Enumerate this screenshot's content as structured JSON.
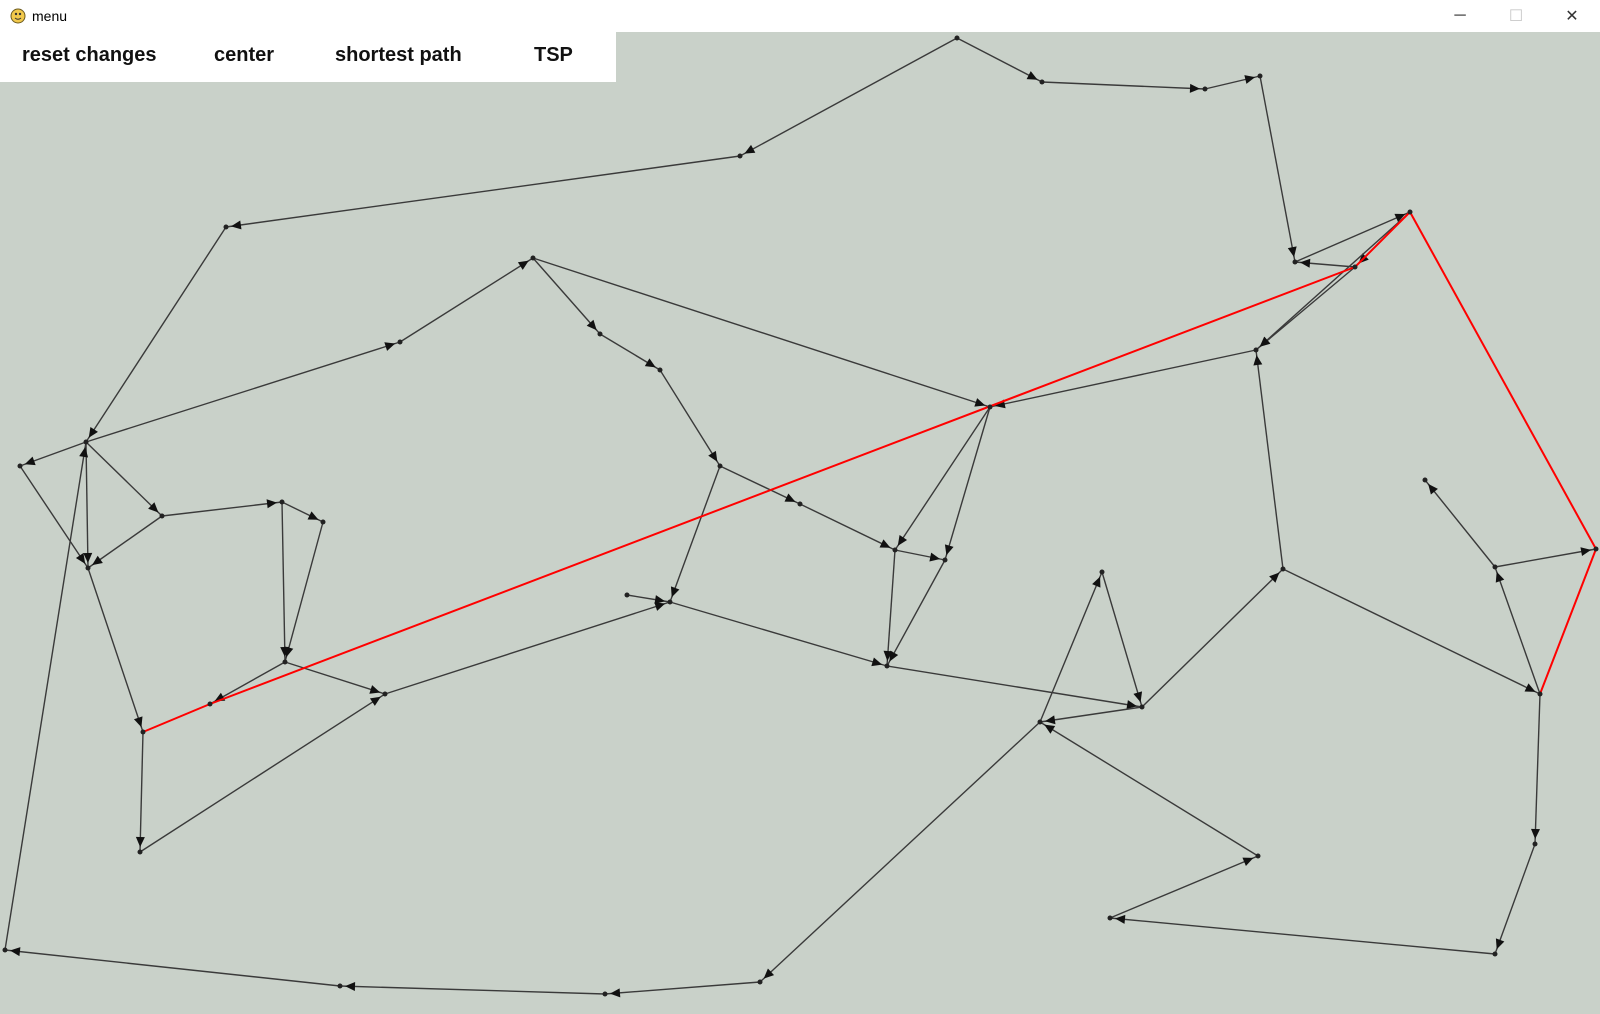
{
  "window": {
    "title": "menu",
    "minimize_glyph": "─",
    "maximize_glyph": "☐",
    "close_glyph": "✕"
  },
  "menu": {
    "reset_label": "reset changes",
    "center_label": "center",
    "shortest_path_label": "shortest path",
    "tsp_label": "TSP"
  },
  "colors": {
    "canvas_bg": "#c9d1c9",
    "edge": "#3a3a3a",
    "path_highlight": "#ff0000"
  }
}
